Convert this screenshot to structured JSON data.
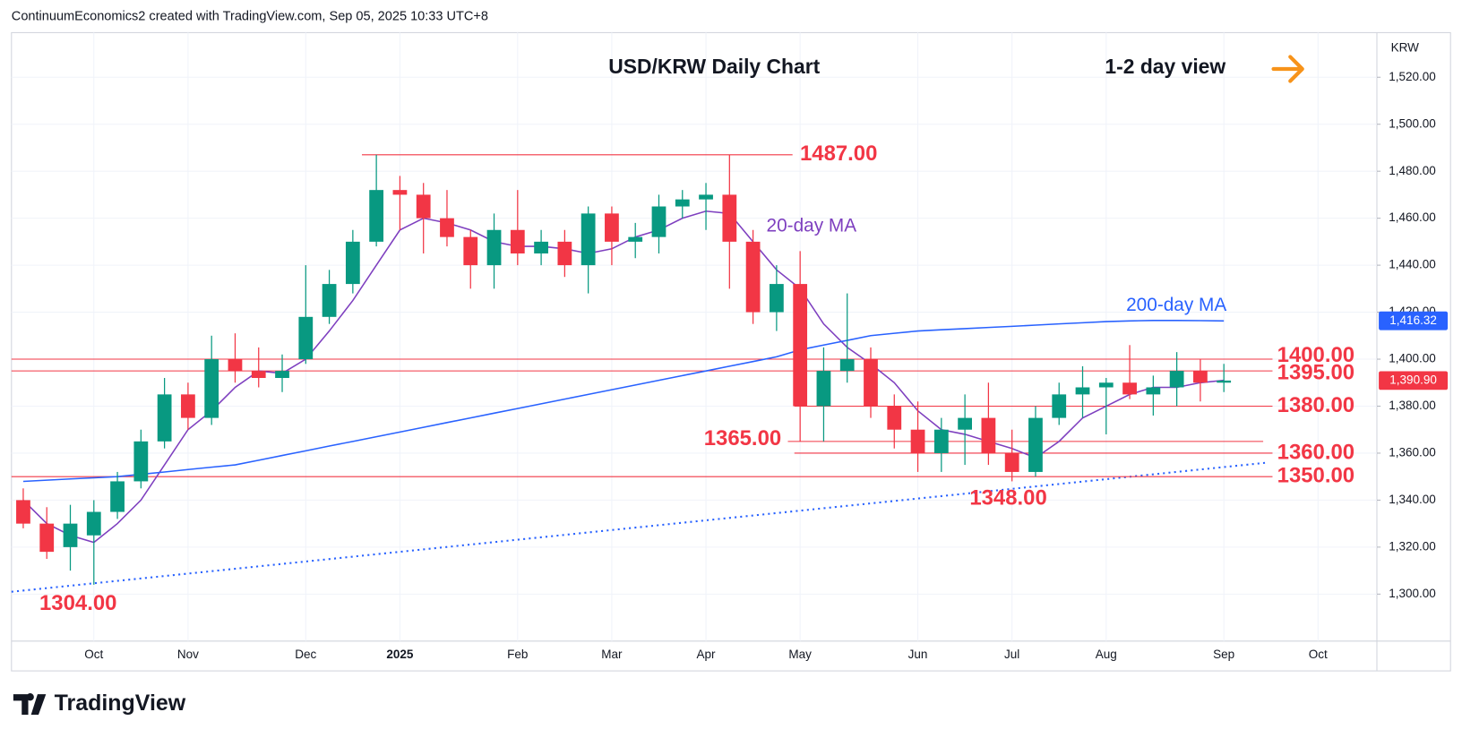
{
  "header": "ContinuumEconomics2 created with TradingView.com, Sep 05, 2025 10:33 UTC+8",
  "brand": "TradingView",
  "chart_data": {
    "type": "candlestick",
    "title": "USD/KRW Daily Chart",
    "subtitle": "1-2 day view",
    "currency": "KRW",
    "categories": [
      null,
      null,
      null,
      "Oct",
      null,
      null,
      null,
      "Nov",
      null,
      null,
      null,
      null,
      "Dec",
      null,
      null,
      null,
      "2025",
      null,
      null,
      null,
      null,
      "Feb",
      null,
      null,
      null,
      "Mar",
      null,
      null,
      null,
      "Apr",
      null,
      null,
      null,
      "May",
      null,
      null,
      null,
      null,
      "Jun",
      null,
      null,
      null,
      "Jul",
      null,
      null,
      null,
      "Aug",
      null,
      null,
      null,
      null,
      "Sep",
      null,
      null,
      null,
      "Oct",
      null,
      null
    ],
    "open": [
      1340,
      1330,
      1320,
      1325,
      1335,
      1348,
      1365,
      1385,
      1375,
      1400,
      1395,
      1392,
      1400,
      1418,
      1432,
      1450,
      1472,
      1470,
      1460,
      1452,
      1440,
      1455,
      1445,
      1450,
      1440,
      1462,
      1450,
      1452,
      1465,
      1468,
      1470,
      1450,
      1420,
      1432,
      1380,
      1395,
      1400,
      1380,
      1370,
      1360,
      1370,
      1375,
      1360,
      1352,
      1375,
      1385,
      1388,
      1390,
      1385,
      1388,
      1395,
      1390,
      null,
      null,
      null,
      null,
      null,
      null
    ],
    "high": [
      1345,
      1337,
      1338,
      1340,
      1352,
      1370,
      1392,
      1390,
      1410,
      1411,
      1405,
      1402,
      1440,
      1438,
      1455,
      1487,
      1478,
      1475,
      1472,
      1455,
      1462,
      1472,
      1455,
      1455,
      1465,
      1465,
      1458,
      1470,
      1472,
      1475,
      1487,
      1455,
      1440,
      1446,
      1405,
      1428,
      1405,
      1385,
      1382,
      1375,
      1385,
      1390,
      1370,
      1380,
      1390,
      1397,
      1392,
      1406,
      1393,
      1403,
      1400,
      1398,
      null,
      null,
      null,
      null,
      null,
      null
    ],
    "low": [
      1328,
      1315,
      1310,
      1304,
      1332,
      1345,
      1362,
      1370,
      1372,
      1390,
      1388,
      1386,
      1398,
      1415,
      1428,
      1448,
      1455,
      1445,
      1448,
      1430,
      1430,
      1440,
      1440,
      1435,
      1428,
      1440,
      1443,
      1445,
      1460,
      1455,
      1430,
      1415,
      1412,
      1365,
      1365,
      1390,
      1375,
      1362,
      1352,
      1352,
      1355,
      1355,
      1348,
      1350,
      1372,
      1375,
      1368,
      1383,
      1376,
      1380,
      1382,
      1386,
      null,
      null,
      null,
      null,
      null,
      null
    ],
    "close": [
      1330,
      1318,
      1330,
      1335,
      1348,
      1365,
      1385,
      1375,
      1400,
      1395,
      1392,
      1395,
      1418,
      1432,
      1450,
      1472,
      1470,
      1460,
      1452,
      1440,
      1455,
      1445,
      1450,
      1440,
      1462,
      1450,
      1452,
      1465,
      1468,
      1470,
      1450,
      1420,
      1432,
      1380,
      1395,
      1400,
      1380,
      1370,
      1360,
      1370,
      1375,
      1360,
      1352,
      1375,
      1385,
      1388,
      1390,
      1385,
      1388,
      1395,
      1390,
      1390.9,
      null,
      null,
      null,
      null,
      null,
      null
    ],
    "colors": {
      "up": "#089981",
      "down": "#f23645"
    },
    "overlays": [
      {
        "name": "20-day MA",
        "color": "#7e3fbf",
        "values": [
          1340,
          1330,
          1325,
          1322,
          1330,
          1340,
          1355,
          1370,
          1378,
          1388,
          1395,
          1394,
          1400,
          1412,
          1425,
          1440,
          1455,
          1460,
          1458,
          1455,
          1450,
          1448,
          1448,
          1447,
          1445,
          1447,
          1452,
          1455,
          1460,
          1463,
          1462,
          1450,
          1438,
          1430,
          1415,
          1405,
          1398,
          1390,
          1378,
          1370,
          1368,
          1365,
          1362,
          1358,
          1365,
          1375,
          1380,
          1385,
          1388,
          1388,
          1390,
          1391,
          null,
          null,
          null,
          null,
          null,
          null
        ]
      },
      {
        "name": "200-day MA",
        "color": "#2962ff",
        "values": [
          1348,
          1348.5,
          1349,
          1349.5,
          1350,
          1351,
          1352,
          1353,
          1354,
          1355,
          1357,
          1359,
          1361,
          1363,
          1365,
          1367,
          1369,
          1371,
          1373,
          1375,
          1377,
          1379,
          1381,
          1383,
          1385,
          1387,
          1389,
          1391,
          1393,
          1395,
          1397,
          1399,
          1401,
          1404,
          1406,
          1408,
          1410,
          1411,
          1412,
          1412.5,
          1413,
          1413.5,
          1414,
          1414.5,
          1415,
          1415.5,
          1416,
          1416.3,
          1416.5,
          1416.5,
          1416.4,
          1416.3,
          null,
          null,
          null,
          null,
          null,
          null
        ]
      }
    ],
    "level_color": "#f23645",
    "levels": [
      {
        "value": 1487,
        "label": "1487.00"
      },
      {
        "value": 1400,
        "label": "1400.00"
      },
      {
        "value": 1395,
        "label": "1395.00"
      },
      {
        "value": 1380,
        "label": "1380.00"
      },
      {
        "value": 1365,
        "label": "1365.00"
      },
      {
        "value": 1360,
        "label": "1360.00"
      },
      {
        "value": 1350,
        "label": "1350.00"
      }
    ],
    "swing_labels": [
      {
        "value": 1304,
        "label": "1304.00"
      },
      {
        "value": 1348,
        "label": "1348.00"
      }
    ],
    "price_tags": [
      {
        "value": 1416.32,
        "label": "1,416.32",
        "color": "#2962ff"
      },
      {
        "value": 1390.9,
        "label": "1,390.90",
        "color": "#f23645"
      }
    ],
    "trend_line": {
      "from": 1301,
      "to": 1356,
      "color": "#2962ff"
    },
    "ylim": [
      1280,
      1539
    ],
    "yticks": [
      {
        "value": 1300,
        "label": "1,300.00"
      },
      {
        "value": 1320,
        "label": "1,320.00"
      },
      {
        "value": 1340,
        "label": "1,340.00"
      },
      {
        "value": 1360,
        "label": "1,360.00"
      },
      {
        "value": 1380,
        "label": "1,380.00"
      },
      {
        "value": 1400,
        "label": "1,400.00"
      },
      {
        "value": 1420,
        "label": "1,420.00"
      },
      {
        "value": 1440,
        "label": "1,440.00"
      },
      {
        "value": 1460,
        "label": "1,460.00"
      },
      {
        "value": 1480,
        "label": "1,480.00"
      },
      {
        "value": 1500,
        "label": "1,500.00"
      },
      {
        "value": 1520,
        "label": "1,520.00"
      }
    ],
    "grid": true
  }
}
